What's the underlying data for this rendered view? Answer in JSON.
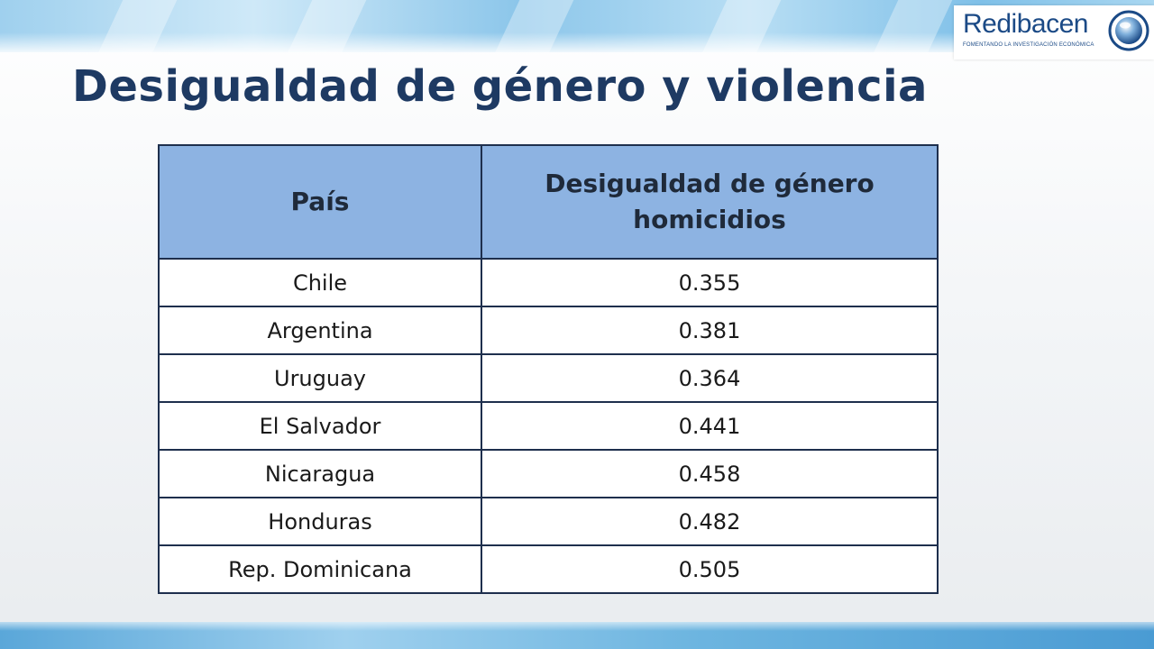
{
  "slide": {
    "title": "Desigualdad de género y violencia"
  },
  "logo": {
    "name": "Redibacen",
    "tagline": "FOMENTANDO LA INVESTIGACIÓN ECONÓMICA"
  },
  "table": {
    "headers": [
      "País",
      "Desigualdad de género homicidios"
    ],
    "rows": [
      [
        "Chile",
        "0.355"
      ],
      [
        "Argentina",
        "0.381"
      ],
      [
        "Uruguay",
        "0.364"
      ],
      [
        "El Salvador",
        "0.441"
      ],
      [
        "Nicaragua",
        "0.458"
      ],
      [
        "Honduras",
        "0.482"
      ],
      [
        "Rep. Dominicana",
        "0.505"
      ]
    ]
  },
  "colors": {
    "title": "#1e3a63",
    "header_fill": "#8db3e2",
    "border": "#1e2f4d",
    "brand": "#1b4a86"
  }
}
